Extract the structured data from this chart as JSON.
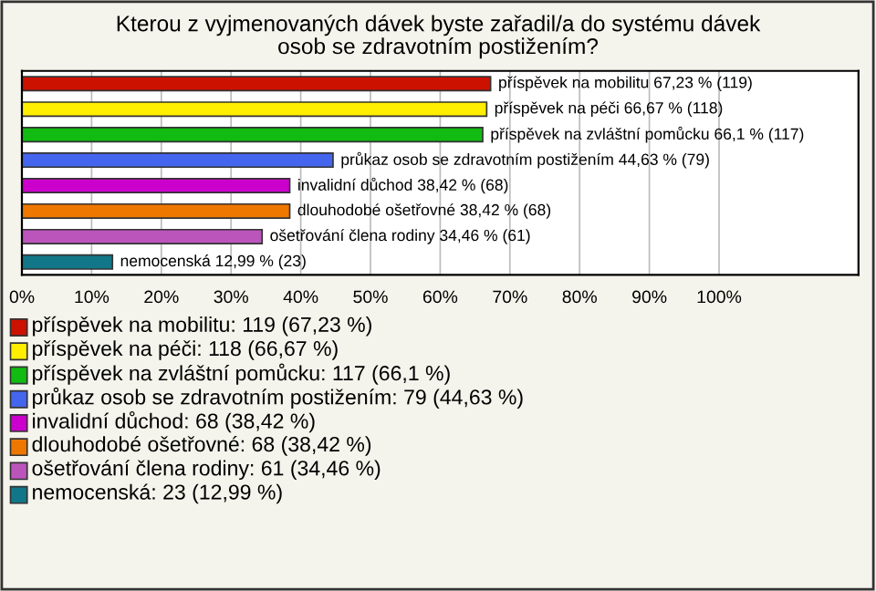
{
  "chart_data": {
    "type": "bar",
    "orientation": "horizontal",
    "title": "Kterou z vyjmenovaných dávek byste zařadil/a do systému dávek\nosob se zdravotním postižením?",
    "categories": [
      null,
      null,
      null,
      null,
      null,
      null,
      null,
      null
    ],
    "values": [
      67.23,
      66.67,
      66.1,
      44.63,
      38.42,
      38.42,
      34.46,
      12.99
    ],
    "colors": [
      "#cc1100",
      "#ffee00",
      "#11bb11",
      "#4466ee",
      "#cc00cc",
      "#ee7700",
      "#bb55bb",
      "#117788"
    ],
    "value_labels": [
      "příspěvek na mobilitu 67,23 % (119)",
      "příspěvek na péči 66,67 % (118)",
      "příspěvek na zvláštní pomůcku 66,1 % (117)",
      "průkaz osob se zdravotním postižením 44,63 % (79)",
      "invalidní důchod 38,42 % (68)",
      "dlouhodobé ošetřovné 38,42 % (68)",
      "ošetřování člena rodiny 34,46 % (61)",
      "nemocenská 12,99 % (23)"
    ],
    "xlim": [
      0,
      120
    ],
    "xticks": [
      {
        "value": 0,
        "label": "0%"
      },
      {
        "value": 10,
        "label": "10%"
      },
      {
        "value": 20,
        "label": "20%"
      },
      {
        "value": 30,
        "label": "30%"
      },
      {
        "value": 40,
        "label": "40%"
      },
      {
        "value": 50,
        "label": "50%"
      },
      {
        "value": 60,
        "label": "60%"
      },
      {
        "value": 70,
        "label": "70%"
      },
      {
        "value": 80,
        "label": "80%"
      },
      {
        "value": 90,
        "label": "90%"
      },
      {
        "value": 100,
        "label": "100%"
      }
    ],
    "grid": "x",
    "tick_labels": "x",
    "annotations": [
      "příspěvek na mobilitu: 119 (67,23 %)",
      "příspěvek na péči: 118 (66,67 %)",
      "příspěvek na zvláštní pomůcku: 117 (66,1 %)",
      "průkaz osob se zdravotním postižením: 79 (44,63 %)",
      "invalidní důchod: 68 (38,42 %)",
      "dlouhodobé ošetřovné: 68 (38,42 %)",
      "ošetřování člena rodiny: 61 (34,46 %)",
      "nemocenská: 23 (12,99 %)"
    ]
  }
}
